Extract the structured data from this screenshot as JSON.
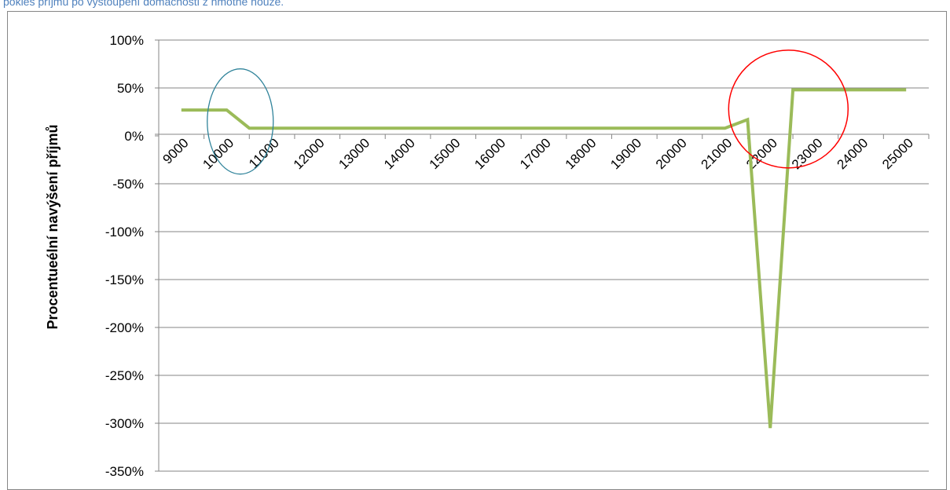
{
  "caption": "pokles příjmů po vystoupení domácnosti z hmotné nouze.",
  "chart_data": {
    "type": "line",
    "title": "",
    "xlabel": "",
    "ylabel": "Procentueélní navýšení příjmů",
    "x_tick_labels": [
      "9000",
      "10000",
      "11000",
      "12000",
      "13000",
      "14000",
      "15000",
      "16000",
      "17000",
      "18000",
      "19000",
      "20000",
      "21000",
      "22000",
      "23000",
      "24000",
      "25000"
    ],
    "y_tick_labels": [
      "100%",
      "50%",
      "0%",
      "-50%",
      "-100%",
      "-150%",
      "-200%",
      "-250%",
      "-300%",
      "-350%"
    ],
    "ylim": [
      -350,
      100
    ],
    "y_unit": "%",
    "grid": "horizontal",
    "legend": "none",
    "series": [
      {
        "color": "#9bbb59",
        "x": [
          9000,
          10000,
          10500,
          11000,
          21000,
          21500,
          22000,
          22500,
          23000,
          24000,
          25000
        ],
        "y": [
          27,
          27,
          8,
          8,
          8,
          17,
          -305,
          48,
          48,
          48,
          48
        ]
      }
    ],
    "annotations": [
      {
        "shape": "ellipse",
        "color": "#31849b",
        "center_x": 10300,
        "center_y": 15
      },
      {
        "shape": "ellipse",
        "color": "#ff0000",
        "center_x": 22400,
        "center_y": 28
      }
    ]
  }
}
